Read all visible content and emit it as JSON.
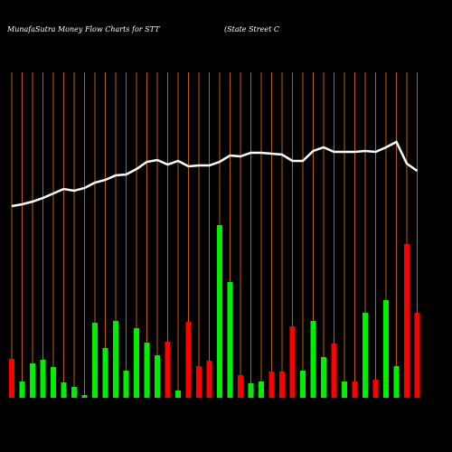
{
  "chart_data": {
    "type": "bar",
    "title": "MunafaSutra  Money Flow  Charts for STT",
    "subtitle": "(State Street C",
    "values": [
      43,
      18,
      38,
      42,
      34,
      17,
      12,
      3,
      83,
      55,
      85,
      30,
      77,
      61,
      47,
      62,
      8,
      84,
      35,
      41,
      191,
      128,
      25,
      16,
      18,
      29,
      29,
      79,
      30,
      85,
      45,
      60,
      18,
      18,
      94,
      20,
      108,
      35,
      170,
      94
    ],
    "colors": [
      "#ff0000",
      "#00ee00",
      "#00ee00",
      "#00ee00",
      "#00ee00",
      "#00ee00",
      "#00ee00",
      "#00ee00",
      "#00ee00",
      "#00ee00",
      "#00ee00",
      "#00ee00",
      "#00ee00",
      "#00ee00",
      "#00ee00",
      "#ff0000",
      "#00ee00",
      "#ff0000",
      "#ff0000",
      "#ff0000",
      "#00ee00",
      "#00ee00",
      "#ff0000",
      "#00ee00",
      "#00ee00",
      "#ff0000",
      "#ff0000",
      "#ff0000",
      "#00ee00",
      "#00ee00",
      "#00ee00",
      "#ff0000",
      "#00ee00",
      "#ff0000",
      "#00ee00",
      "#ff0000",
      "#00ee00",
      "#00ee00",
      "#ff0000",
      "#ff0000"
    ],
    "ylim": [
      0,
      360
    ],
    "line_values": [
      212,
      214,
      217,
      221,
      226,
      231,
      229,
      232,
      238,
      241,
      246,
      247,
      253,
      261,
      263,
      258,
      262,
      256,
      257,
      257,
      261,
      268,
      267,
      271,
      271,
      270,
      269,
      262,
      262,
      273,
      277,
      272,
      272,
      272,
      273,
      272,
      277,
      283,
      259,
      251
    ],
    "line_color": "#ffffff",
    "y2lim": [
      0,
      360
    ],
    "gridline_color": "#b8600a"
  }
}
